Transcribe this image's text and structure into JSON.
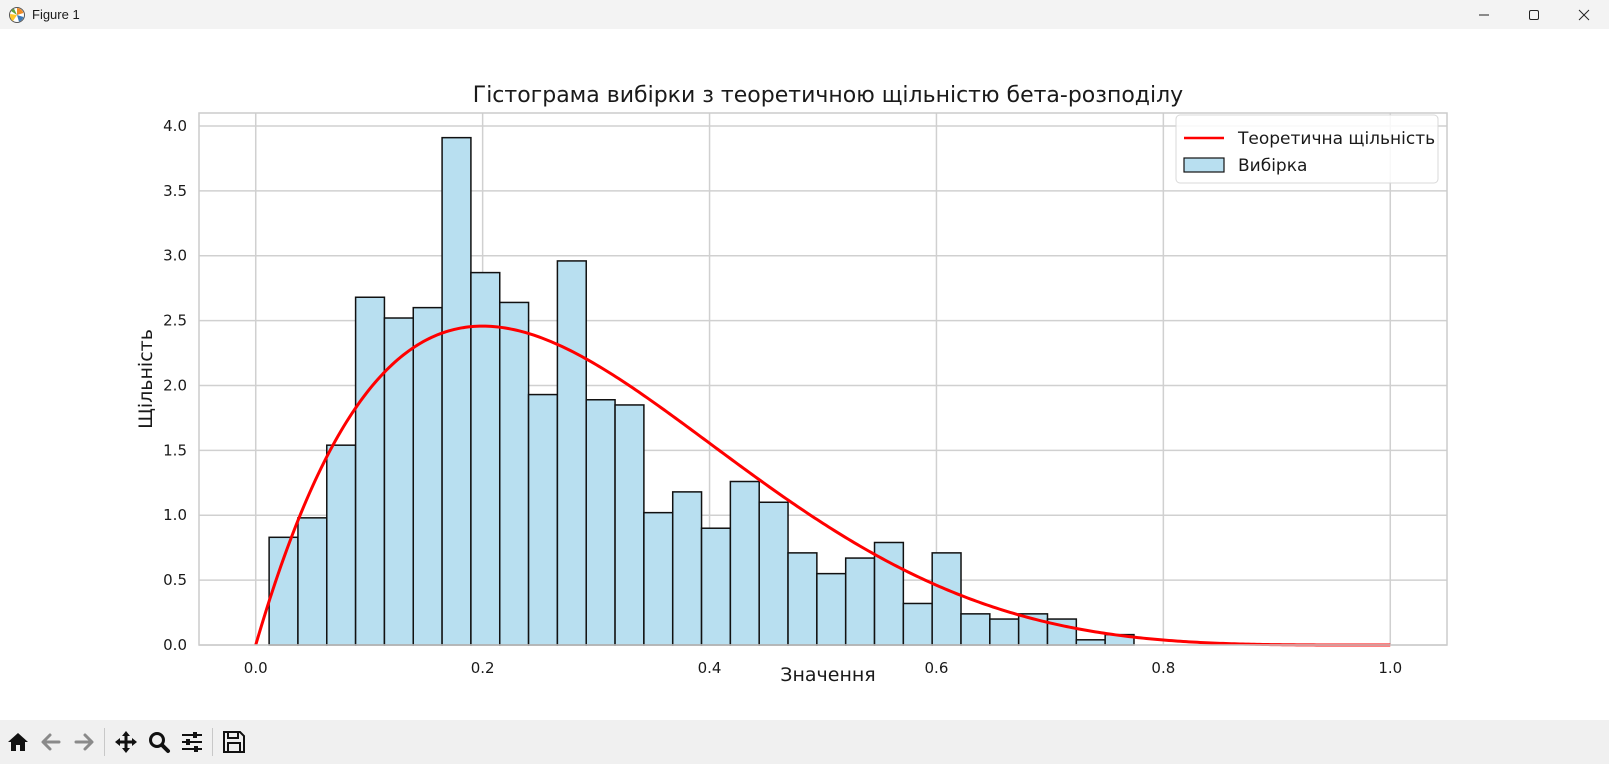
{
  "window": {
    "title": "Figure 1",
    "minimize_icon": "minimize-icon",
    "maximize_icon": "maximize-icon",
    "close_icon": "close-icon"
  },
  "toolbar": {
    "buttons": [
      {
        "name": "home-button",
        "icon": "home-icon"
      },
      {
        "name": "back-button",
        "icon": "arrow-left-icon"
      },
      {
        "name": "forward-button",
        "icon": "arrow-right-icon"
      },
      {
        "name": "pan-button",
        "icon": "move-icon"
      },
      {
        "name": "zoom-button",
        "icon": "magnifier-icon"
      },
      {
        "name": "configure-subplots-button",
        "icon": "sliders-icon"
      },
      {
        "name": "save-button",
        "icon": "floppy-icon"
      }
    ]
  },
  "chart_data": {
    "type": "bar",
    "title": "Гістограма вибірки з теоретичною щільністю бета-розподілу",
    "xlabel": "Значення",
    "ylabel": "Щільність",
    "xlim": [
      -0.05,
      1.05
    ],
    "ylim": [
      0.0,
      4.1
    ],
    "xticks": [
      "0.0",
      "0.2",
      "0.4",
      "0.6",
      "0.8",
      "1.0"
    ],
    "yticks": [
      "0.0",
      "0.5",
      "1.0",
      "1.5",
      "2.0",
      "2.5",
      "3.0",
      "3.5",
      "4.0"
    ],
    "grid": true,
    "legend_position": "top-right",
    "colors": {
      "bars": "#b8dff0",
      "bar_edge": "#111111",
      "line": "#ff0000",
      "grid": "#d0d0d0"
    },
    "histogram": {
      "name": "Вибірка",
      "bin_start": 0.0118,
      "bin_width": 0.02541,
      "values": [
        0.83,
        0.98,
        1.54,
        2.68,
        2.52,
        2.6,
        3.91,
        2.87,
        2.64,
        1.93,
        2.96,
        1.89,
        1.85,
        1.02,
        1.18,
        0.9,
        1.26,
        1.1,
        0.71,
        0.55,
        0.67,
        0.79,
        0.32,
        0.71,
        0.24,
        0.2,
        0.24,
        0.2,
        0.04,
        0.08
      ]
    },
    "density": {
      "name": "Теоретична щільність",
      "distribution": "beta",
      "alpha": 2,
      "beta": 5,
      "x_range": [
        0.0,
        1.0
      ]
    }
  }
}
